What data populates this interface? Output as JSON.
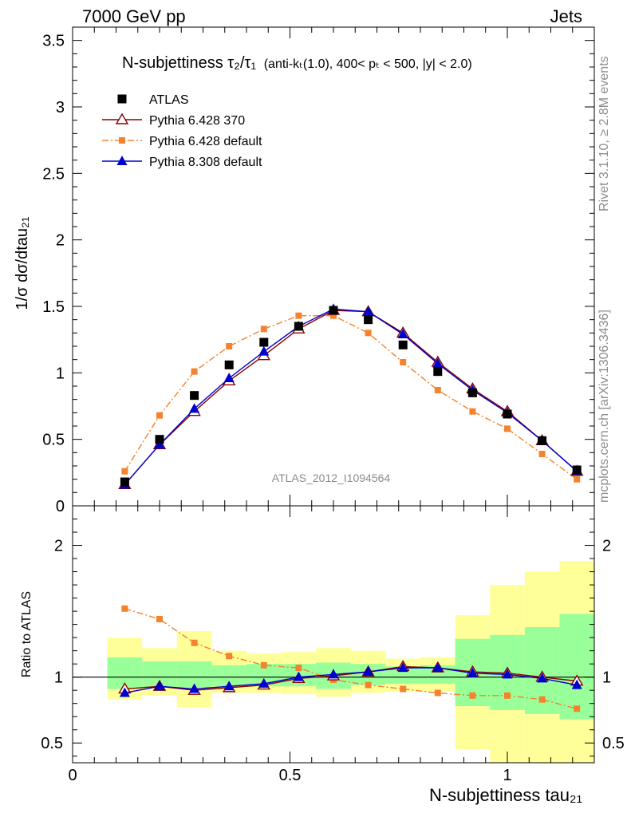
{
  "header": {
    "left": "7000 GeV pp",
    "right": "Jets"
  },
  "side_labels": {
    "rivet": "Rivet 3.1.10, ≥ 2.8M events",
    "mcplots": "mcplots.cern.ch [arXiv:1306.3436]"
  },
  "watermark": "ATLAS_2012_I1094564",
  "title": {
    "main": "N-subjettiness τ₂/τ₁",
    "sub": "(anti-kₜ(1.0), 400< pₜ < 500, |y| < 2.0)"
  },
  "ylabel_main": "1/σ dσ/dtau₂₁",
  "ylabel_ratio": "Ratio to ATLAS",
  "xlabel": "N-subjettiness tau₂₁",
  "colors": {
    "atlas": "#000000",
    "p6_370": "#8b0000",
    "p6_default": "#f5822e",
    "p8_default": "#0000cd",
    "band_inner": "#99ff99",
    "band_outer": "#ffff99"
  },
  "chart_data": {
    "type": "scatter",
    "x": [
      0.12,
      0.2,
      0.28,
      0.36,
      0.44,
      0.52,
      0.6,
      0.68,
      0.76,
      0.84,
      0.92,
      1.0,
      1.08,
      1.16
    ],
    "bin_edges": [
      0.08,
      0.16,
      0.24,
      0.32,
      0.4,
      0.48,
      0.56,
      0.64,
      0.72,
      0.8,
      0.88,
      0.96,
      1.04,
      1.12,
      1.2
    ],
    "xlim": [
      0,
      1.2
    ],
    "main_ylim": [
      0,
      3.6
    ],
    "ratio_ylim": [
      0.35,
      2.3
    ],
    "main_yticks": [
      "0",
      "0.5",
      "1",
      "1.5",
      "2",
      "2.5",
      "3",
      "3.5"
    ],
    "ratio_yticks": [
      "0.5",
      "1",
      "2"
    ],
    "xticks": [
      "0",
      "0.5",
      "1"
    ],
    "series": [
      {
        "name": "ATLAS",
        "key": "atlas",
        "values": [
          0.18,
          0.5,
          0.83,
          1.06,
          1.23,
          1.35,
          1.47,
          1.4,
          1.21,
          1.01,
          0.85,
          0.69,
          0.49,
          0.27
        ],
        "ratio": [
          1,
          1,
          1,
          1,
          1,
          1,
          1,
          1,
          1,
          1,
          1,
          1,
          1,
          1
        ]
      },
      {
        "name": "Pythia 6.428 370",
        "key": "p6_370",
        "values": [
          0.16,
          0.46,
          0.71,
          0.94,
          1.13,
          1.33,
          1.47,
          1.46,
          1.3,
          1.08,
          0.88,
          0.71,
          0.49,
          0.26
        ],
        "ratio": [
          0.91,
          0.93,
          0.9,
          0.92,
          0.94,
          0.99,
          1.01,
          1.04,
          1.08,
          1.07,
          1.04,
          1.03,
          1.0,
          0.97
        ]
      },
      {
        "name": "Pythia 6.428 default",
        "key": "p6_default",
        "values": [
          0.26,
          0.68,
          1.01,
          1.2,
          1.33,
          1.43,
          1.43,
          1.3,
          1.08,
          0.87,
          0.71,
          0.58,
          0.39,
          0.2
        ],
        "ratio": [
          1.52,
          1.44,
          1.26,
          1.16,
          1.09,
          1.07,
          0.98,
          0.94,
          0.91,
          0.88,
          0.86,
          0.86,
          0.83,
          0.76
        ]
      },
      {
        "name": "Pythia 8.308 default",
        "key": "p8_default",
        "values": [
          0.16,
          0.46,
          0.73,
          0.96,
          1.16,
          1.35,
          1.48,
          1.46,
          1.29,
          1.07,
          0.87,
          0.7,
          0.49,
          0.26
        ],
        "ratio": [
          0.88,
          0.93,
          0.91,
          0.93,
          0.95,
          1.0,
          1.02,
          1.04,
          1.07,
          1.07,
          1.03,
          1.02,
          0.99,
          0.94
        ]
      }
    ],
    "band_inner": [
      [
        0.91,
        1.15
      ],
      [
        0.92,
        1.12
      ],
      [
        0.92,
        1.12
      ],
      [
        0.93,
        1.09
      ],
      [
        0.93,
        1.1
      ],
      [
        0.93,
        1.1
      ],
      [
        0.91,
        1.11
      ],
      [
        0.94,
        1.1
      ],
      [
        0.95,
        1.08
      ],
      [
        0.95,
        1.09
      ],
      [
        0.78,
        1.29
      ],
      [
        0.75,
        1.32
      ],
      [
        0.72,
        1.38
      ],
      [
        0.68,
        1.48
      ]
    ],
    "band_outer": [
      [
        0.83,
        1.3
      ],
      [
        0.86,
        1.22
      ],
      [
        0.77,
        1.35
      ],
      [
        0.88,
        1.2
      ],
      [
        0.88,
        1.18
      ],
      [
        0.87,
        1.19
      ],
      [
        0.85,
        1.22
      ],
      [
        0.88,
        1.2
      ],
      [
        0.89,
        1.14
      ],
      [
        0.89,
        1.15
      ],
      [
        0.45,
        1.47
      ],
      [
        0.33,
        1.7
      ],
      [
        0.3,
        1.8
      ],
      [
        0.3,
        1.88
      ]
    ],
    "legend_position": "top-left"
  }
}
